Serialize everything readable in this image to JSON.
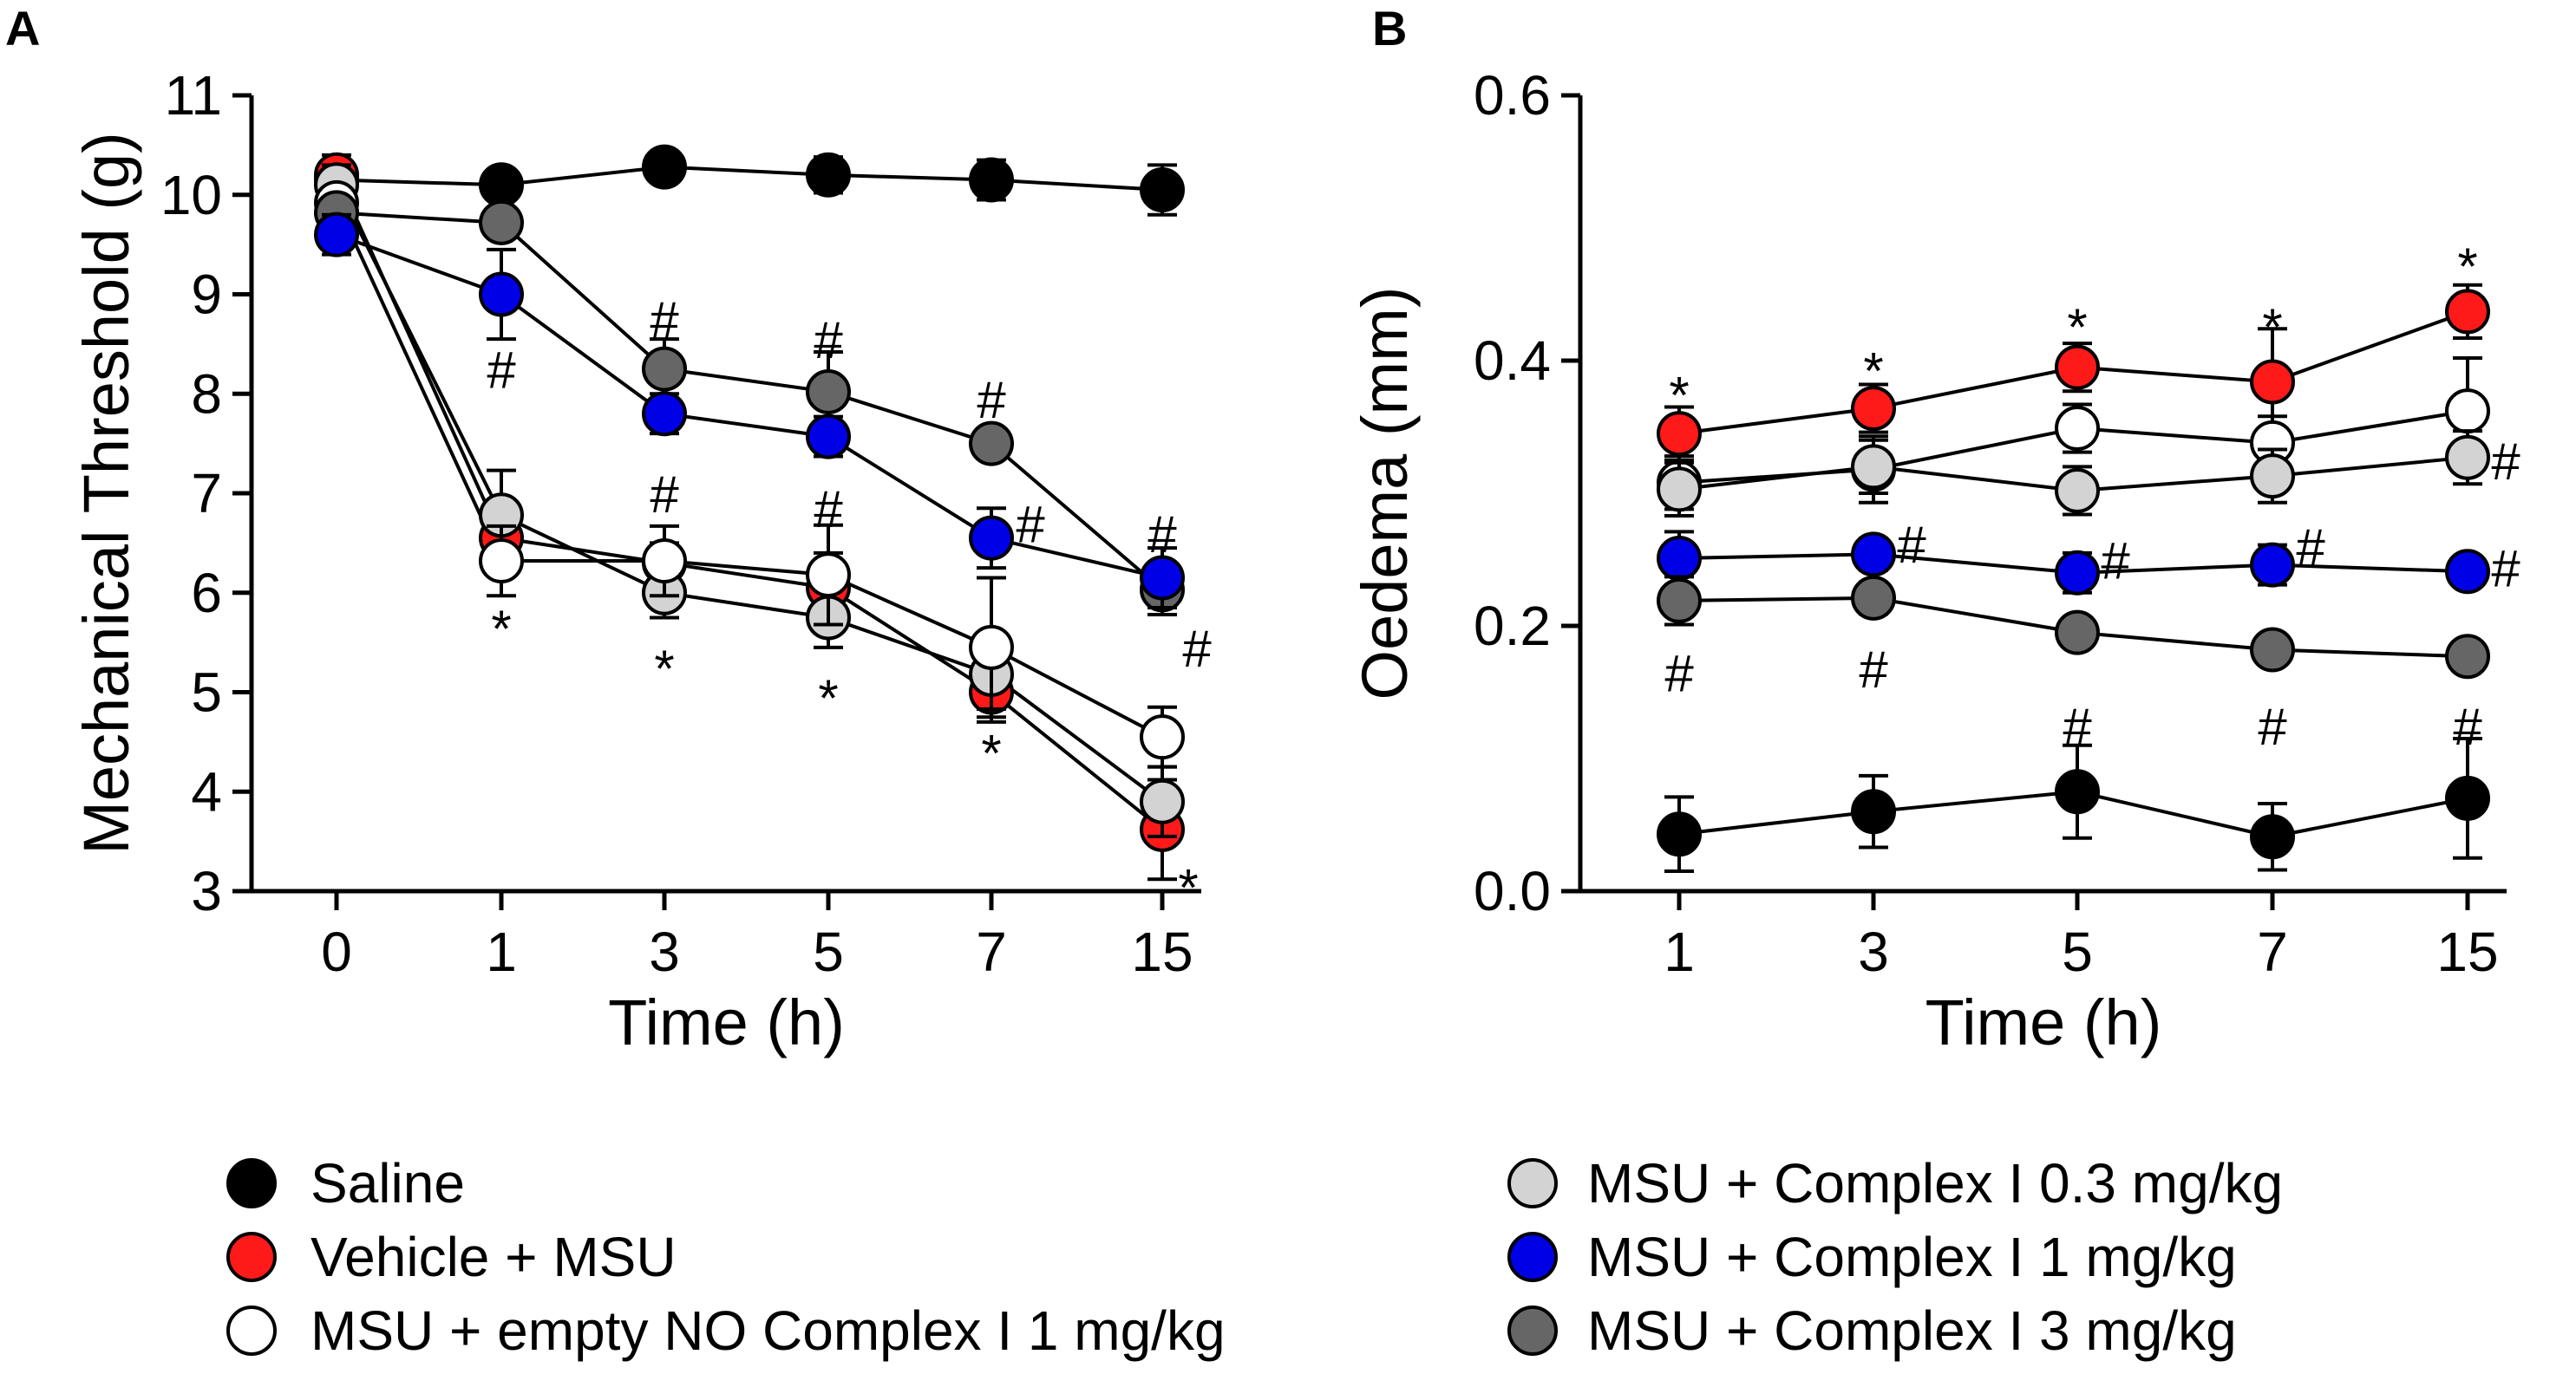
{
  "colors": {
    "saline": "#000000",
    "vehicle_msu": "#ff1a1a",
    "empty_no": "#ffffff",
    "c03": "#d3d3d3",
    "c1": "#0000e6",
    "c3": "#666666"
  },
  "series_names": {
    "saline": "Saline",
    "vehicle_msu": "Vehicle + MSU",
    "empty_no": "MSU + empty NO Complex I 1 mg/kg",
    "c03": "MSU + Complex I 0.3 mg/kg",
    "c1": "MSU + Complex I 1 mg/kg",
    "c3": "MSU + Complex I 3 mg/kg"
  },
  "chart_data": [
    {
      "panel": "A",
      "type": "line",
      "title": "",
      "xlabel": "Time (h)",
      "ylabel": "Mechanical Threshold  (g)",
      "categories": [
        "0",
        "1",
        "3",
        "5",
        "7",
        "15"
      ],
      "ylim": [
        3,
        11
      ],
      "yticks": [
        "3",
        "4",
        "5",
        "6",
        "7",
        "8",
        "9",
        "10",
        "11"
      ],
      "series": [
        {
          "key": "saline",
          "values": [
            10.15,
            10.1,
            10.28,
            10.2,
            10.15,
            10.05
          ],
          "errors": [
            0.2,
            0.1,
            0.08,
            0.18,
            0.2,
            0.25
          ]
        },
        {
          "key": "vehicle_msu",
          "values": [
            10.2,
            6.55,
            6.3,
            6.05,
            5.0,
            3.62
          ],
          "errors": [
            0.2,
            0.25,
            0.2,
            0.35,
            0.3,
            0.5
          ]
        },
        {
          "key": "c03",
          "values": [
            10.1,
            6.78,
            6.0,
            5.75,
            5.18,
            3.9
          ],
          "errors": [
            0.2,
            0.45,
            0.25,
            0.3,
            0.35,
            0.35
          ]
        },
        {
          "key": "empty_no",
          "values": [
            9.92,
            6.32,
            6.32,
            6.18,
            5.45,
            4.55
          ],
          "errors": [
            0.15,
            0.35,
            0.35,
            0.5,
            0.7,
            0.3
          ]
        },
        {
          "key": "c3",
          "values": [
            9.82,
            9.72,
            8.25,
            8.02,
            7.5,
            6.03
          ],
          "errors": [
            0.1,
            0.12,
            0.3,
            0.4,
            0.12,
            0.25
          ]
        },
        {
          "key": "c1",
          "values": [
            9.6,
            9.0,
            7.8,
            7.57,
            6.55,
            6.15
          ],
          "errors": [
            0.2,
            0.45,
            0.2,
            0.2,
            0.3,
            0.3
          ]
        }
      ],
      "annotations": [
        {
          "text": "*",
          "x": "1",
          "y": 5.65
        },
        {
          "text": "*",
          "x": "3",
          "y": 5.25
        },
        {
          "text": "*",
          "x": "5",
          "y": 4.95
        },
        {
          "text": "*",
          "x": "7",
          "y": 4.4
        },
        {
          "text": "*",
          "x": "15",
          "y": 3.05
        },
        {
          "text": "#",
          "x": "1",
          "y": 8.25
        },
        {
          "text": "#",
          "x": "3",
          "y": 8.75
        },
        {
          "text": "#",
          "x": "3",
          "y": 7.0
        },
        {
          "text": "#",
          "x": "5",
          "y": 8.55
        },
        {
          "text": "#",
          "x": "5",
          "y": 6.85
        },
        {
          "text": "#",
          "x": "7",
          "y": 7.95
        },
        {
          "text": "#",
          "x": "7",
          "y": 6.7
        },
        {
          "text": "#",
          "x": "15",
          "y": 6.6
        },
        {
          "text": "#",
          "x": "15",
          "y": 5.45
        }
      ]
    },
    {
      "panel": "B",
      "type": "line",
      "title": "",
      "xlabel": "Time (h)",
      "ylabel": "Oedema (mm)",
      "categories": [
        "1",
        "3",
        "5",
        "7",
        "15"
      ],
      "ylim": [
        0,
        0.6
      ],
      "yticks": [
        "0.0",
        "0.2",
        "0.4",
        "0.6"
      ],
      "series": [
        {
          "key": "vehicle_msu",
          "values": [
            0.345,
            0.364,
            0.395,
            0.384,
            0.437
          ],
          "errors": [
            0.02,
            0.018,
            0.018,
            0.04,
            0.02
          ]
        },
        {
          "key": "empty_no",
          "values": [
            0.308,
            0.318,
            0.349,
            0.338,
            0.362
          ],
          "errors": [
            0.02,
            0.025,
            0.018,
            0.02,
            0.04
          ]
        },
        {
          "key": "c03",
          "values": [
            0.303,
            0.32,
            0.302,
            0.313,
            0.327
          ],
          "errors": [
            0.02,
            0.02,
            0.018,
            0.02,
            0.02
          ]
        },
        {
          "key": "c1",
          "values": [
            0.251,
            0.254,
            0.24,
            0.246,
            0.241
          ],
          "errors": [
            0.02,
            0.012,
            0.015,
            0.015,
            0.005
          ]
        },
        {
          "key": "c3",
          "values": [
            0.219,
            0.221,
            0.195,
            0.182,
            0.177
          ],
          "errors": [
            0.018,
            0.012,
            0.005,
            0.005,
            0.005
          ]
        },
        {
          "key": "saline",
          "values": [
            0.043,
            0.06,
            0.075,
            0.041,
            0.07
          ],
          "errors": [
            0.028,
            0.027,
            0.035,
            0.025,
            0.045
          ]
        }
      ],
      "annotations": [
        {
          "text": "*",
          "x": "1",
          "y": 0.375
        },
        {
          "text": "*",
          "x": "3",
          "y": 0.393
        },
        {
          "text": "*",
          "x": "5",
          "y": 0.426
        },
        {
          "text": "*",
          "x": "7",
          "y": 0.426
        },
        {
          "text": "*",
          "x": "15",
          "y": 0.472
        },
        {
          "text": "#",
          "x": "1",
          "y": 0.165
        },
        {
          "text": "#",
          "x": "3",
          "y": 0.168
        },
        {
          "text": "#",
          "x": "5",
          "y": 0.125
        },
        {
          "text": "#",
          "x": "7",
          "y": 0.125
        },
        {
          "text": "#",
          "x": "15",
          "y": 0.125
        },
        {
          "text": "#",
          "x": "3",
          "y": 0.262,
          "side": "right"
        },
        {
          "text": "#",
          "x": "5",
          "y": 0.25,
          "side": "right"
        },
        {
          "text": "#",
          "x": "7",
          "y": 0.26,
          "side": "right"
        },
        {
          "text": "#",
          "x": "15",
          "y": 0.244,
          "side": "right"
        },
        {
          "text": "#",
          "x": "15",
          "y": 0.325,
          "side": "right"
        }
      ]
    }
  ],
  "legend": {
    "left": [
      "saline",
      "vehicle_msu",
      "empty_no"
    ],
    "right": [
      "c03",
      "c1",
      "c3"
    ]
  }
}
